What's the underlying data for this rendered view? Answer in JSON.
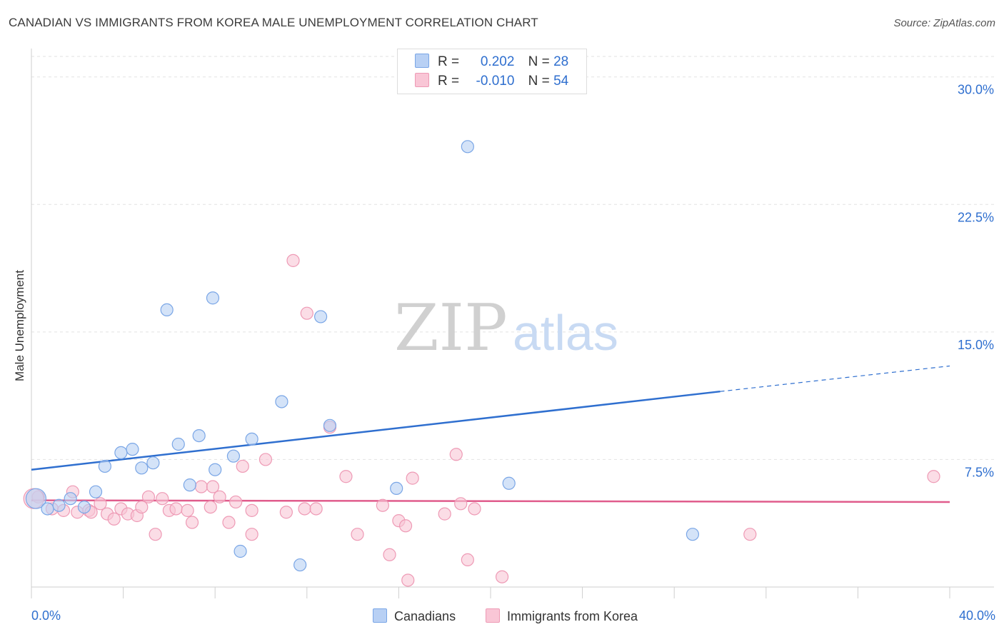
{
  "title": "CANADIAN VS IMMIGRANTS FROM KOREA MALE UNEMPLOYMENT CORRELATION CHART",
  "source": "Source: ZipAtlas.com",
  "watermark": {
    "zip": "ZIP",
    "atlas": "atlas"
  },
  "legend_top": {
    "canadians": {
      "r_label": "R =",
      "r_value": "0.202",
      "n_label": "N =",
      "n_value": "28"
    },
    "korea": {
      "r_label": "R =",
      "r_value": "-0.010",
      "n_label": "N =",
      "n_value": "54"
    }
  },
  "legend_bottom": {
    "canadians": "Canadians",
    "korea": "Immigrants from Korea"
  },
  "x_labels": {
    "min": "0.0%",
    "max": "40.0%"
  },
  "colors": {
    "blue_fill": "#b8d0f4",
    "blue_stroke": "#7aa6e6",
    "blue_line": "#2f6fcf",
    "pink_fill": "#f9c6d6",
    "pink_stroke": "#ee9ab5",
    "pink_line": "#e05c8c",
    "tick_label": "#2f6fcf"
  },
  "chart_data": {
    "type": "scatter",
    "title": "CANADIAN VS IMMIGRANTS FROM KOREA MALE UNEMPLOYMENT CORRELATION CHART",
    "xlabel": "",
    "ylabel": "Male Unemployment",
    "xlim": [
      0,
      40
    ],
    "ylim": [
      0,
      31.5
    ],
    "y_ticks": [
      {
        "value": 7.5,
        "label": "7.5%"
      },
      {
        "value": 15.0,
        "label": "15.0%"
      },
      {
        "value": 22.5,
        "label": "22.5%"
      },
      {
        "value": 30.0,
        "label": "30.0%"
      }
    ],
    "series": [
      {
        "name": "Canadians",
        "color": "blue",
        "points": [
          [
            0.2,
            5.2
          ],
          [
            0.7,
            4.6
          ],
          [
            1.2,
            4.8
          ],
          [
            1.7,
            5.2
          ],
          [
            2.3,
            4.7
          ],
          [
            2.8,
            5.6
          ],
          [
            3.2,
            7.1
          ],
          [
            3.9,
            7.9
          ],
          [
            4.4,
            8.1
          ],
          [
            4.8,
            7.0
          ],
          [
            5.3,
            7.3
          ],
          [
            5.9,
            16.3
          ],
          [
            6.4,
            8.4
          ],
          [
            6.9,
            6.0
          ],
          [
            7.3,
            8.9
          ],
          [
            7.9,
            17.0
          ],
          [
            8.0,
            6.9
          ],
          [
            8.8,
            7.7
          ],
          [
            9.6,
            8.7
          ],
          [
            10.9,
            10.9
          ],
          [
            9.1,
            2.1
          ],
          [
            11.7,
            1.3
          ],
          [
            12.6,
            15.9
          ],
          [
            13.0,
            9.5
          ],
          [
            15.9,
            5.8
          ],
          [
            19.0,
            25.9
          ],
          [
            20.8,
            6.1
          ],
          [
            28.8,
            3.1
          ]
        ],
        "trend": {
          "x0": 0,
          "y0": 6.9,
          "x1": 30,
          "y1": 11.5,
          "dash_to_x": 40,
          "dash_to_y": 13.0
        }
      },
      {
        "name": "Immigrants from Korea",
        "color": "pink",
        "points": [
          [
            0.3,
            5.3
          ],
          [
            0.9,
            4.6
          ],
          [
            1.4,
            4.5
          ],
          [
            1.8,
            5.6
          ],
          [
            2.0,
            4.4
          ],
          [
            2.5,
            4.5
          ],
          [
            2.6,
            4.4
          ],
          [
            3.0,
            4.9
          ],
          [
            3.3,
            4.3
          ],
          [
            3.6,
            4.0
          ],
          [
            3.9,
            4.6
          ],
          [
            4.2,
            4.3
          ],
          [
            4.6,
            4.2
          ],
          [
            4.8,
            4.7
          ],
          [
            5.1,
            5.3
          ],
          [
            5.4,
            3.1
          ],
          [
            5.7,
            5.2
          ],
          [
            6.0,
            4.5
          ],
          [
            6.3,
            4.6
          ],
          [
            6.8,
            4.5
          ],
          [
            7.0,
            3.8
          ],
          [
            7.4,
            5.9
          ],
          [
            7.8,
            4.7
          ],
          [
            7.9,
            5.9
          ],
          [
            8.2,
            5.3
          ],
          [
            8.6,
            3.8
          ],
          [
            8.9,
            5.0
          ],
          [
            9.2,
            7.1
          ],
          [
            9.6,
            4.5
          ],
          [
            9.6,
            3.1
          ],
          [
            10.2,
            7.5
          ],
          [
            11.1,
            4.4
          ],
          [
            11.4,
            19.2
          ],
          [
            11.9,
            4.6
          ],
          [
            12.0,
            16.1
          ],
          [
            12.4,
            4.6
          ],
          [
            13.0,
            9.4
          ],
          [
            13.7,
            6.5
          ],
          [
            14.2,
            3.1
          ],
          [
            15.3,
            4.8
          ],
          [
            15.6,
            1.9
          ],
          [
            16.0,
            3.9
          ],
          [
            16.3,
            3.6
          ],
          [
            16.6,
            6.4
          ],
          [
            16.4,
            0.4
          ],
          [
            18.0,
            4.3
          ],
          [
            18.5,
            7.8
          ],
          [
            18.7,
            4.9
          ],
          [
            19.0,
            1.6
          ],
          [
            19.3,
            4.6
          ],
          [
            20.5,
            0.6
          ],
          [
            31.3,
            3.1
          ],
          [
            39.3,
            6.5
          ],
          [
            0.1,
            5.2
          ]
        ],
        "trend": {
          "x0": 0,
          "y0": 5.1,
          "x1": 40,
          "y1": 5.0
        }
      }
    ]
  }
}
